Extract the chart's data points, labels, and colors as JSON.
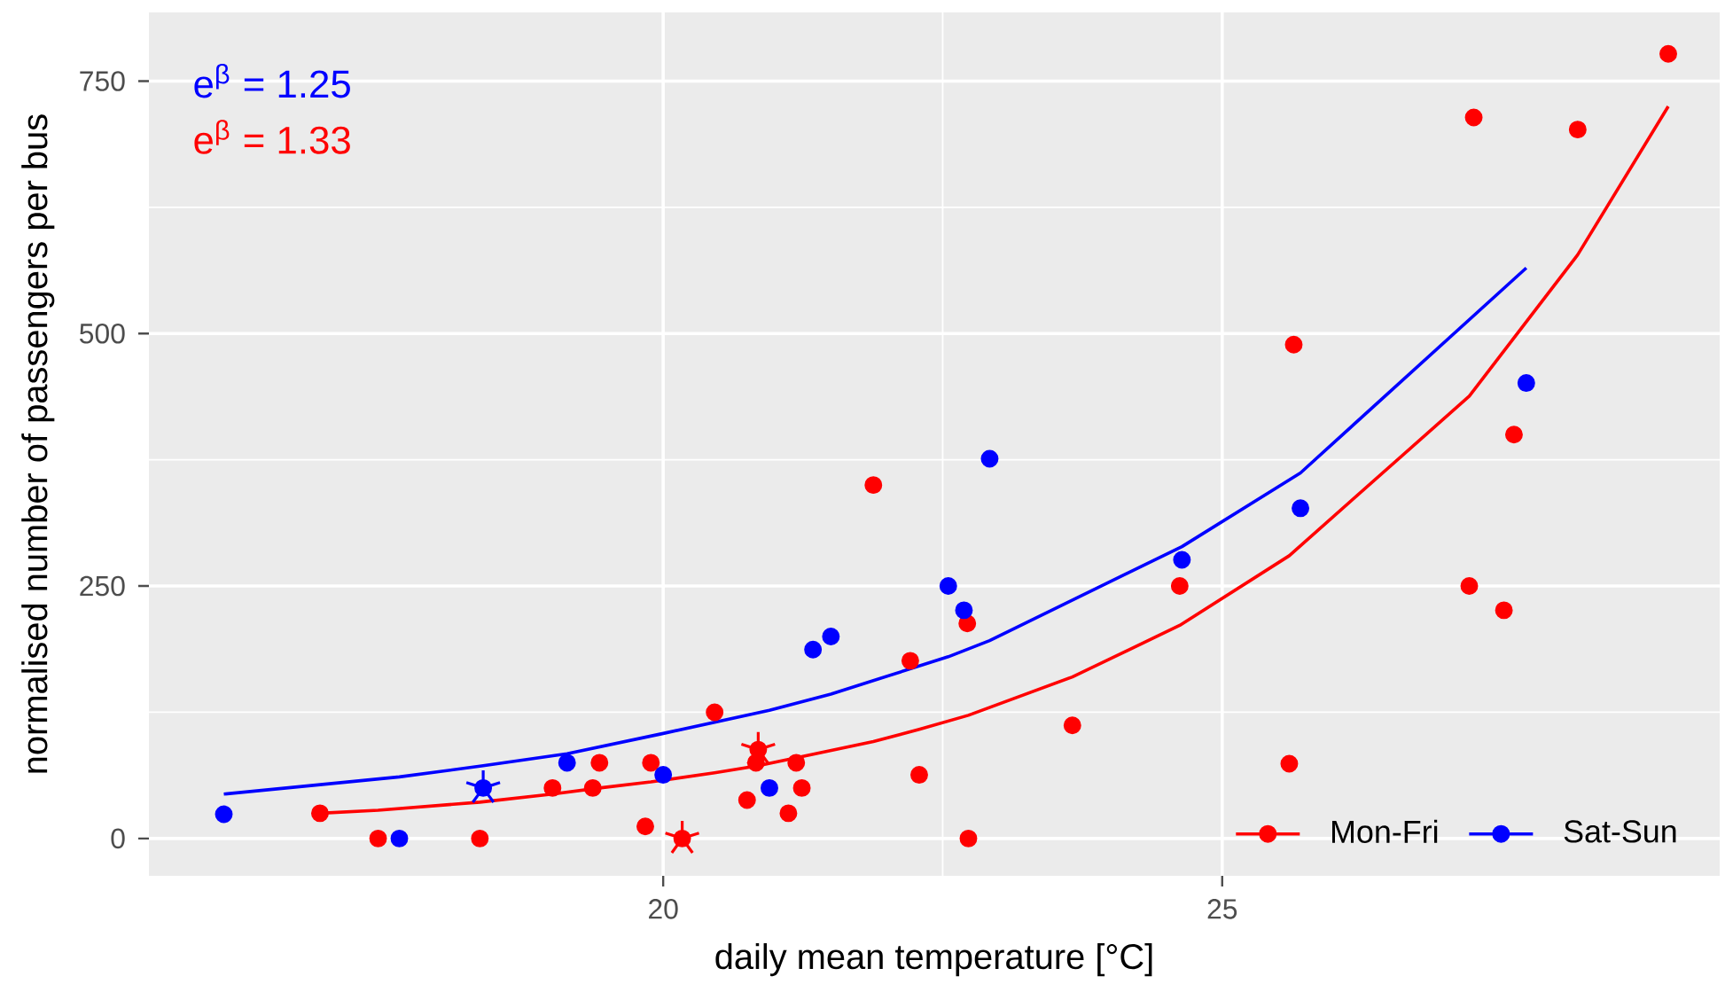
{
  "chart_data": {
    "type": "scatter",
    "xlabel": "daily mean temperature [°C]",
    "ylabel": "normalised number of passengers per bus",
    "annotations": [
      "e$^{β}$ = 1.25",
      "e$^{β}$ = 1.33"
    ],
    "xlim": [
      15.4,
      29.45
    ],
    "ylim": [
      -37,
      818
    ],
    "xticks": [
      20,
      25
    ],
    "yticks": [
      0,
      250,
      500,
      750
    ],
    "grid": true,
    "legend": "bottom right",
    "marker": "circle",
    "line_style": "solid",
    "series": [
      {
        "name": "Mon-Fri",
        "color": "#ff0000",
        "x": [
          16.93,
          17.45,
          18.36,
          19.01,
          19.37,
          19.43,
          19.84,
          19.89,
          20.17,
          20.46,
          20.75,
          20.83,
          20.85,
          21.12,
          21.19,
          21.24,
          21.88,
          22.21,
          22.29,
          22.72,
          22.73,
          23.66,
          24.62,
          25.6,
          25.64,
          27.21,
          27.25,
          27.52,
          27.61,
          28.18,
          28.99
        ],
        "values": [
          25,
          0,
          0,
          50,
          50,
          75,
          12,
          75,
          0,
          125,
          38,
          75,
          88,
          25,
          75,
          50,
          350,
          176,
          63,
          213,
          0,
          112,
          250,
          74,
          489,
          250,
          714,
          226,
          400,
          702,
          777
        ]
      },
      {
        "name": "Sat-Sun",
        "color": "#0000ff",
        "x": [
          16.07,
          17.64,
          18.39,
          19.14,
          20.0,
          20.95,
          21.34,
          21.5,
          22.55,
          22.69,
          22.92,
          24.64,
          25.7,
          27.72
        ],
        "values": [
          24,
          0,
          50,
          75,
          63,
          50,
          187,
          200,
          250,
          226,
          376,
          276,
          327,
          451
        ]
      },
      {
        "color": "#ff0000",
        "type": "line",
        "marker": "none",
        "x": [
          16.93,
          17.45,
          18.36,
          19.01,
          19.43,
          19.89,
          20.46,
          20.85,
          21.24,
          21.88,
          22.29,
          22.73,
          23.66,
          24.62,
          25.6,
          27.21,
          28.18,
          28.99
        ],
        "values": [
          25,
          28,
          36,
          44,
          50,
          56,
          65,
          72,
          81,
          96,
          108,
          122,
          160,
          211,
          280,
          438,
          578,
          725
        ]
      },
      {
        "color": "#0000ff",
        "type": "line",
        "marker": "none",
        "x": [
          16.07,
          17.64,
          18.39,
          19.14,
          20.0,
          20.95,
          21.5,
          22.55,
          22.92,
          24.64,
          25.7,
          27.72
        ],
        "values": [
          44,
          61,
          72,
          84,
          104,
          127,
          143,
          180,
          196,
          289,
          362,
          565
        ]
      },
      {
        "color": "#ff0000",
        "marker": "cross",
        "x": [
          20.17,
          20.85
        ],
        "values": [
          0,
          88
        ]
      },
      {
        "color": "#0000ff",
        "marker": "cross",
        "x": [
          18.39
        ],
        "values": [
          50
        ]
      }
    ]
  }
}
